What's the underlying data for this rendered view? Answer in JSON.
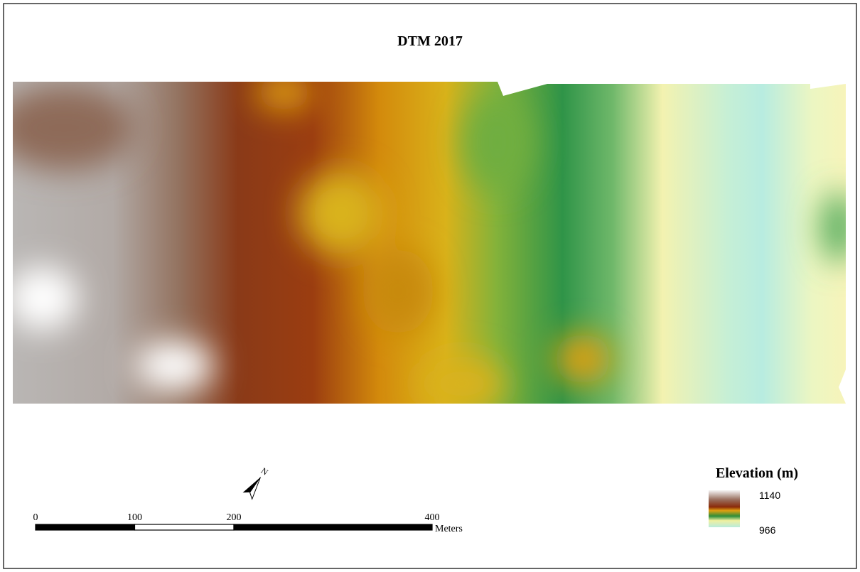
{
  "title": "DTM 2017",
  "scale_bar": {
    "ticks": [
      0,
      100,
      200,
      400
    ],
    "unit": "Meters"
  },
  "north_arrow": {
    "label": "N"
  },
  "legend": {
    "title": "Elevation (m)",
    "max": 1140,
    "min": 966
  }
}
